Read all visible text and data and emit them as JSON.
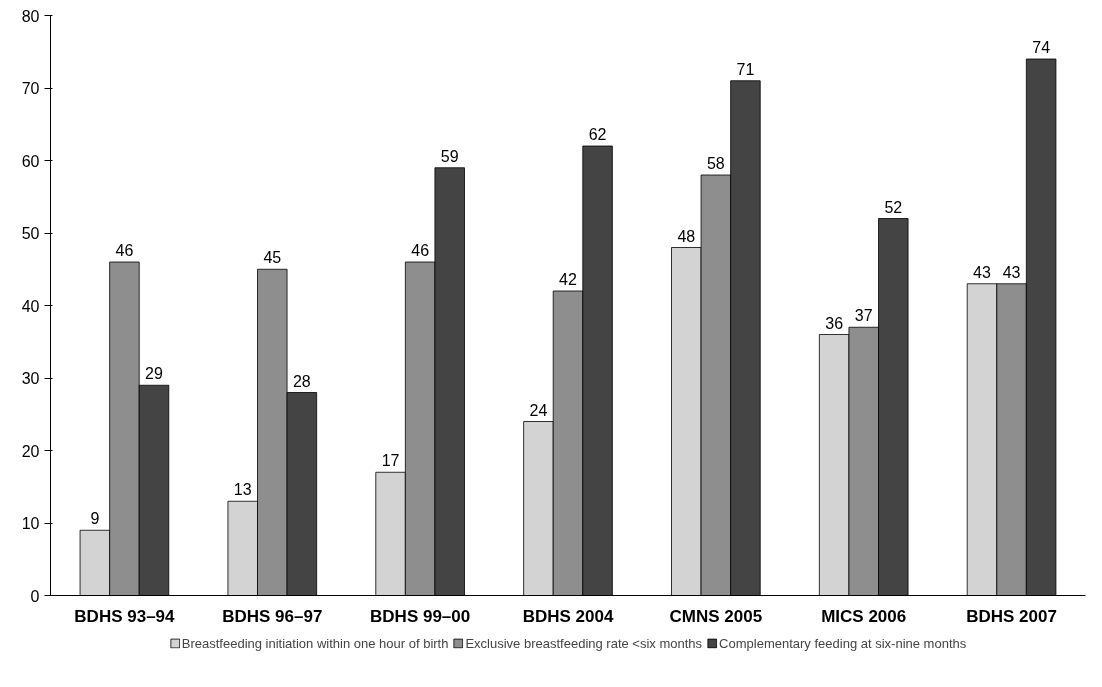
{
  "chart_data": {
    "type": "bar",
    "categories": [
      "BDHS 93–94",
      "BDHS 96–97",
      "BDHS 99–00",
      "BDHS 2004",
      "CMNS 2005",
      "MICS 2006",
      "BDHS 2007"
    ],
    "series": [
      {
        "name": "Breastfeeding initiation within one hour of birth",
        "color": "#d3d3d3",
        "values": [
          9,
          13,
          17,
          24,
          48,
          36,
          43
        ]
      },
      {
        "name": "Exclusive breastfeeding rate <six months",
        "color": "#8e8e8e",
        "values": [
          46,
          45,
          46,
          42,
          58,
          37,
          43
        ]
      },
      {
        "name": "Complementary feeding at six-nine months",
        "color": "#444444",
        "values": [
          29,
          28,
          59,
          62,
          71,
          52,
          74
        ]
      }
    ],
    "ylim": [
      0,
      80
    ],
    "yticks": [
      0,
      10,
      20,
      30,
      40,
      50,
      60,
      70,
      80
    ],
    "grid": false,
    "legend": "bottom",
    "data_labels": true
  }
}
